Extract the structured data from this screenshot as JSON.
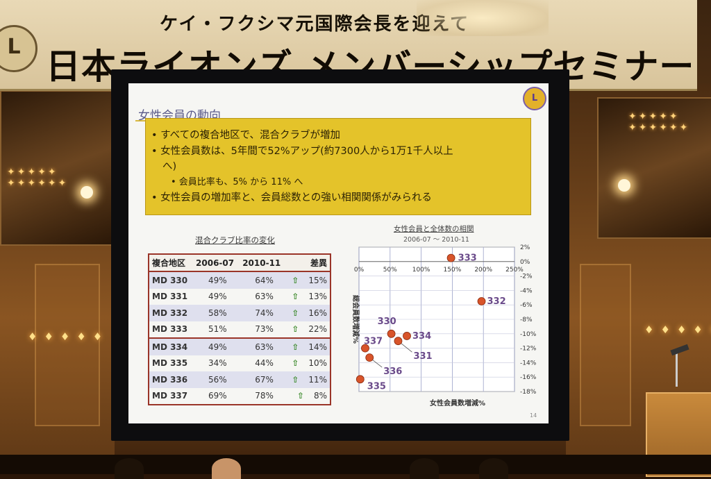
{
  "banner": {
    "subtitle": "ケイ・フクシマ元国際会長を迎えて",
    "title": "日本ライオンズ メンバーシップセミナー",
    "logo_text": "L"
  },
  "slide": {
    "title": "女性会員の動向",
    "logo_text": "L",
    "bullets": [
      "• すべての複合地区で、混合クラブが増加",
      "• 女性会員数は、5年間で52%アップ(約7300人から1万1千人以上",
      "へ)",
      "• 会員比率も、5% から 11% へ",
      "• 女性会員の増加率と、会員総数との強い相関関係がみられる"
    ],
    "table_title": "混合クラブ比率の変化",
    "table_headers": [
      "複合地区",
      "2006-07",
      "2010-11",
      "差異"
    ],
    "table_rows": [
      [
        "MD 330",
        "49%",
        "64%",
        "15%"
      ],
      [
        "MD 331",
        "49%",
        "63%",
        "13%"
      ],
      [
        "MD 332",
        "58%",
        "74%",
        "16%"
      ],
      [
        "MD 333",
        "51%",
        "73%",
        "22%"
      ],
      [
        "MD 334",
        "49%",
        "63%",
        "14%"
      ],
      [
        "MD 335",
        "34%",
        "44%",
        "10%"
      ],
      [
        "MD 336",
        "56%",
        "67%",
        "11%"
      ],
      [
        "MD 337",
        "69%",
        "78%",
        "8%"
      ]
    ],
    "scatter_title": "女性会員と全体数の相関",
    "scatter_subtitle": "2006-07 ～ 2010-11",
    "page_number": "14"
  },
  "chart_data": {
    "type": "scatter",
    "title": "女性会員と全体数の相関",
    "subtitle": "2006-07 ～ 2010-11",
    "xlabel": "女性会員数増減%",
    "ylabel": "総会員数増減%",
    "xlim": [
      0,
      250
    ],
    "ylim": [
      -18,
      2
    ],
    "x_ticks": [
      "0%",
      "50%",
      "100%",
      "150%",
      "200%",
      "250%"
    ],
    "y_ticks": [
      "2%",
      "0%",
      "-2%",
      "-4%",
      "-6%",
      "-8%",
      "-10%",
      "-12%",
      "-14%",
      "-16%",
      "-18%"
    ],
    "points": [
      {
        "label": "333",
        "x": 148,
        "y": 0.5
      },
      {
        "label": "332",
        "x": 197,
        "y": -5.5
      },
      {
        "label": "330",
        "x": 52,
        "y": -10
      },
      {
        "label": "334",
        "x": 77,
        "y": -10.3
      },
      {
        "label": "331",
        "x": 63,
        "y": -11
      },
      {
        "label": "337",
        "x": 10,
        "y": -12
      },
      {
        "label": "336",
        "x": 17,
        "y": -13.3
      },
      {
        "label": "335",
        "x": 2,
        "y": -16.3
      }
    ],
    "marker_color": "#d8542a"
  }
}
